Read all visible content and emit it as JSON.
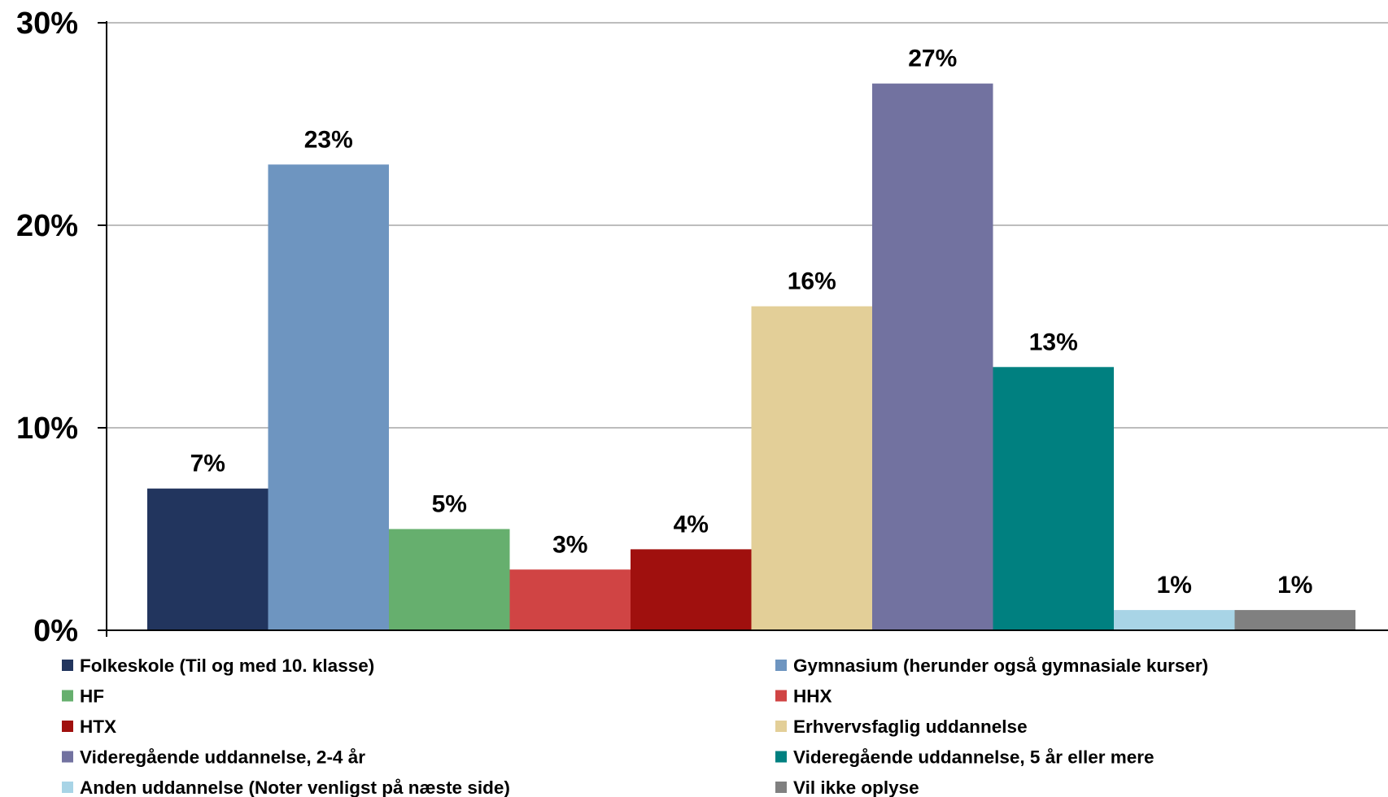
{
  "chart_data": {
    "type": "bar",
    "title": "",
    "xlabel": "",
    "ylabel": "",
    "ylim": [
      0,
      30
    ],
    "yticks": [
      0,
      10,
      20,
      30
    ],
    "ytick_labels": [
      "0%",
      "10%",
      "20%",
      "30%"
    ],
    "grid": true,
    "legend_position": "bottom",
    "categories": [
      "Folkeskole (Til og med 10. klasse)",
      "Gymnasium (herunder også gymnasiale kurser)",
      "HF",
      "HHX",
      "HTX",
      "Erhvervsfaglig uddannelse",
      "Videregående uddannelse, 2-4 år",
      "Videregående uddannelse, 5 år eller mere",
      "Anden uddannelse (Noter venligst på næste side)",
      "Vil ikke oplyse"
    ],
    "values": [
      7,
      23,
      5,
      3,
      4,
      16,
      27,
      13,
      1,
      1
    ],
    "data_labels": [
      "7%",
      "23%",
      "5%",
      "3%",
      "4%",
      "16%",
      "27%",
      "13%",
      "1%",
      "1%"
    ],
    "colors": [
      "#22355E",
      "#6E95C0",
      "#66AF6E",
      "#D04444",
      "#A0100E",
      "#E3CF98",
      "#7272A0",
      "#008080",
      "#A8D4E6",
      "#808080"
    ]
  }
}
